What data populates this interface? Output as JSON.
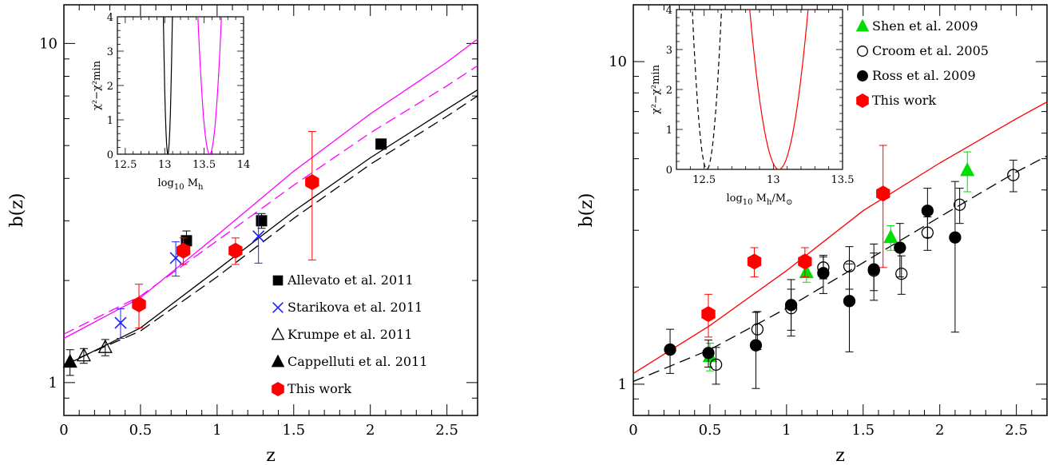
{
  "panels": [
    {
      "id": "left",
      "xlabel": "z",
      "ylabel": "b(z)",
      "xticks": [
        "0",
        "0.5",
        "1",
        "1.5",
        "2",
        "2.5"
      ],
      "yticks": [
        "1",
        "10"
      ],
      "legend": [
        {
          "label": "Allevato et al. 2011",
          "marker": "square",
          "color": "#000000"
        },
        {
          "label": "Starikova et al. 2011",
          "marker": "cross",
          "color": "#2020ff"
        },
        {
          "label": "Krumpe et al. 2011",
          "marker": "triangle-open",
          "color": "#000000"
        },
        {
          "label": "Cappelluti et al. 2011",
          "marker": "triangle",
          "color": "#000000"
        },
        {
          "label": "This work",
          "marker": "hexagon",
          "color": "#ff0000"
        }
      ],
      "inset": {
        "xlabel_main": "log",
        "xlabel_sub": "10",
        "xlabel_rest": " M",
        "xlabel_rest_sub": "h",
        "ylabel": "χ²−χ²min",
        "xticks": [
          "12.5",
          "13",
          "13.5",
          "14"
        ],
        "yticks": [
          "0",
          "1",
          "2",
          "3",
          "4"
        ]
      }
    },
    {
      "id": "right",
      "xlabel": "z",
      "ylabel": "b(z)",
      "xticks": [
        "0",
        "0.5",
        "1",
        "1.5",
        "2",
        "2.5"
      ],
      "yticks": [
        "1",
        "10"
      ],
      "legend": [
        {
          "label": "Shen et al. 2009",
          "marker": "triangle",
          "color": "#00dd00"
        },
        {
          "label": "Croom et al. 2005",
          "marker": "circle-open",
          "color": "#000000"
        },
        {
          "label": "Ross et al. 2009",
          "marker": "circle",
          "color": "#000000"
        },
        {
          "label": "This work",
          "marker": "hexagon",
          "color": "#ff0000"
        }
      ],
      "inset": {
        "xlabel_main": "log",
        "xlabel_sub": "10",
        "xlabel_rest": " M",
        "xlabel_rest_sub": "h",
        "xlabel_tail": "/M",
        "xlabel_tail_sub": "⊙",
        "ylabel": "χ²−χ²min",
        "xticks": [
          "12.5",
          "13",
          "13.5"
        ],
        "yticks": [
          "0",
          "1",
          "2",
          "3",
          "4"
        ]
      }
    }
  ],
  "chart_data": [
    {
      "type": "scatter",
      "panel": "left",
      "xlabel": "z",
      "ylabel": "b(z)",
      "xlim": [
        0,
        2.7
      ],
      "ylim": [
        0.8,
        13
      ],
      "yscale": "log",
      "series": [
        {
          "name": "Allevato et al. 2011",
          "marker": "square",
          "color": "#000000",
          "points": [
            [
              0.8,
              2.62,
              0.18
            ],
            [
              1.29,
              3.0,
              0.15
            ],
            [
              2.07,
              5.05,
              0.0
            ]
          ]
        },
        {
          "name": "Starikova et al. 2011",
          "marker": "cross",
          "color": "#2020ff",
          "points": [
            [
              0.37,
              1.5,
              0.15
            ],
            [
              0.73,
              2.33,
              0.27
            ],
            [
              1.27,
              2.7,
              0.45
            ]
          ]
        },
        {
          "name": "Krumpe et al. 2011",
          "marker": "triangle-open",
          "color": "#000000",
          "points": [
            [
              0.13,
              1.2,
              0.06
            ],
            [
              0.27,
              1.27,
              0.07
            ]
          ]
        },
        {
          "name": "Cappelluti et al. 2011",
          "marker": "triangle",
          "color": "#000000",
          "points": [
            [
              0.04,
              1.15,
              0.1
            ]
          ]
        },
        {
          "name": "This work",
          "marker": "hexagon",
          "color": "#ff0000",
          "points": [
            [
              0.49,
              1.7,
              0.25
            ],
            [
              0.78,
              2.45,
              0.22
            ],
            [
              1.12,
              2.45,
              0.22
            ],
            [
              1.62,
              3.9,
              1.6
            ]
          ]
        }
      ],
      "curves": [
        {
          "style": "solid",
          "color": "#ff00ff",
          "points": [
            [
              0,
              1.35
            ],
            [
              0.5,
              1.78
            ],
            [
              1.0,
              2.72
            ],
            [
              1.5,
              4.2
            ],
            [
              2.0,
              6.2
            ],
            [
              2.5,
              8.8
            ],
            [
              2.7,
              10.3
            ]
          ]
        },
        {
          "style": "dashed",
          "color": "#ff00ff",
          "points": [
            [
              0,
              1.39
            ],
            [
              0.5,
              1.8
            ],
            [
              1.0,
              2.62
            ],
            [
              1.5,
              3.82
            ],
            [
              2.0,
              5.45
            ],
            [
              2.5,
              7.5
            ],
            [
              2.7,
              8.6
            ]
          ]
        },
        {
          "style": "solid",
          "color": "#000000",
          "points": [
            [
              0,
              1.12
            ],
            [
              0.5,
              1.45
            ],
            [
              1.0,
              2.15
            ],
            [
              1.5,
              3.2
            ],
            [
              2.0,
              4.6
            ],
            [
              2.5,
              6.4
            ],
            [
              2.7,
              7.3
            ]
          ]
        },
        {
          "style": "dashed",
          "color": "#000000",
          "points": [
            [
              0,
              1.13
            ],
            [
              0.5,
              1.42
            ],
            [
              1.0,
              2.05
            ],
            [
              1.5,
              3.05
            ],
            [
              2.0,
              4.4
            ],
            [
              2.5,
              6.1
            ],
            [
              2.7,
              7.0
            ]
          ]
        }
      ]
    },
    {
      "type": "scatter",
      "panel": "right",
      "xlabel": "z",
      "ylabel": "b(z)",
      "xlim": [
        0,
        2.7
      ],
      "ylim": [
        0.8,
        15
      ],
      "yscale": "log",
      "series": [
        {
          "name": "Shen et al. 2009",
          "marker": "triangle",
          "color": "#00dd00",
          "points": [
            [
              0.5,
              1.22,
              0.12
            ],
            [
              1.13,
              2.22,
              0.15
            ],
            [
              1.68,
              2.85,
              0.25
            ],
            [
              2.18,
              4.6,
              0.65
            ]
          ]
        },
        {
          "name": "Croom et al. 2005",
          "marker": "circle-open",
          "color": "#000000",
          "points": [
            [
              0.54,
              1.15,
              0.15
            ],
            [
              0.81,
              1.48,
              0.2
            ],
            [
              1.03,
              1.72,
              0.25
            ],
            [
              1.24,
              2.3,
              0.18
            ],
            [
              1.41,
              2.32,
              0.35
            ],
            [
              1.57,
              2.25,
              0.3
            ],
            [
              1.75,
              2.2,
              0.3
            ],
            [
              1.92,
              2.95,
              0.35
            ],
            [
              2.13,
              3.6,
              0.45
            ],
            [
              2.48,
              4.45,
              0.5
            ]
          ]
        },
        {
          "name": "Ross et al. 2009",
          "marker": "circle",
          "color": "#000000",
          "points": [
            [
              0.24,
              1.28,
              0.2
            ],
            [
              0.49,
              1.25,
              0.12
            ],
            [
              0.8,
              1.32,
              0.35
            ],
            [
              1.03,
              1.76,
              0.35
            ],
            [
              1.24,
              2.21,
              0.3
            ],
            [
              1.41,
              1.81,
              0.55
            ],
            [
              1.57,
              2.27,
              0.45
            ],
            [
              1.74,
              2.65,
              0.5
            ],
            [
              1.92,
              3.45,
              0.6
            ],
            [
              2.1,
              2.85,
              1.4
            ]
          ]
        },
        {
          "name": "This work",
          "marker": "hexagon",
          "color": "#ff0000",
          "points": [
            [
              0.49,
              1.65,
              0.25
            ],
            [
              0.79,
              2.4,
              0.25
            ],
            [
              1.12,
              2.4,
              0.25
            ],
            [
              1.63,
              3.9,
              1.6
            ]
          ]
        }
      ],
      "curves": [
        {
          "style": "solid",
          "color": "#ff0000",
          "points": [
            [
              0,
              1.08
            ],
            [
              0.5,
              1.52
            ],
            [
              1.0,
              2.25
            ],
            [
              1.5,
              3.45
            ],
            [
              2.0,
              4.85
            ],
            [
              2.5,
              6.65
            ],
            [
              2.7,
              7.5
            ]
          ]
        },
        {
          "style": "dashed",
          "color": "#000000",
          "points": [
            [
              0,
              1.02
            ],
            [
              0.5,
              1.28
            ],
            [
              1.0,
              1.72
            ],
            [
              1.5,
              2.38
            ],
            [
              2.0,
              3.3
            ],
            [
              2.5,
              4.55
            ],
            [
              2.7,
              5.1
            ]
          ]
        }
      ]
    }
  ]
}
